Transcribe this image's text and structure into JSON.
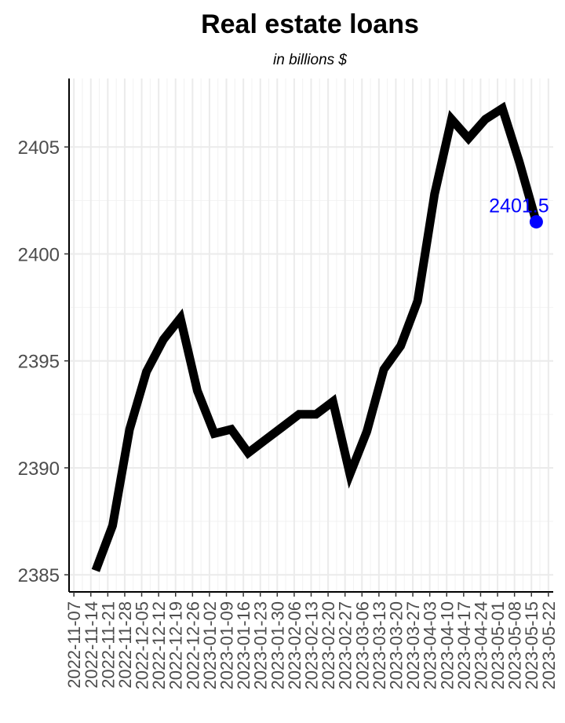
{
  "chart_data": {
    "type": "line",
    "title": "Real estate loans",
    "subtitle": "in billions $",
    "xlabel": "",
    "ylabel": "",
    "x_ticks": [
      "2022-11-07",
      "2022-11-14",
      "2022-11-21",
      "2022-11-28",
      "2022-12-05",
      "2022-12-12",
      "2022-12-19",
      "2022-12-26",
      "2023-01-02",
      "2023-01-09",
      "2023-01-16",
      "2023-01-23",
      "2023-01-30",
      "2023-02-06",
      "2023-02-13",
      "2023-02-20",
      "2023-02-27",
      "2023-03-06",
      "2023-03-13",
      "2023-03-20",
      "2023-03-27",
      "2023-04-03",
      "2023-04-10",
      "2023-04-17",
      "2023-04-24",
      "2023-05-01",
      "2023-05-08",
      "2023-05-15",
      "2023-05-22"
    ],
    "x": [
      "2022-11-16",
      "2022-11-23",
      "2022-11-30",
      "2022-12-07",
      "2022-12-14",
      "2022-12-21",
      "2022-12-28",
      "2023-01-04",
      "2023-01-11",
      "2023-01-18",
      "2023-01-25",
      "2023-02-01",
      "2023-02-08",
      "2023-02-15",
      "2023-02-22",
      "2023-03-01",
      "2023-03-08",
      "2023-03-15",
      "2023-03-22",
      "2023-03-29",
      "2023-04-05",
      "2023-04-12",
      "2023-04-19",
      "2023-04-26",
      "2023-05-03",
      "2023-05-10",
      "2023-05-17"
    ],
    "y": [
      2385.2,
      2387.3,
      2391.8,
      2394.5,
      2396.0,
      2397.0,
      2393.6,
      2391.6,
      2391.8,
      2390.7,
      2391.3,
      2391.9,
      2392.5,
      2392.5,
      2393.1,
      2389.7,
      2391.7,
      2394.6,
      2395.7,
      2397.8,
      2402.8,
      2406.3,
      2405.4,
      2406.3,
      2406.8,
      2404.3,
      2401.5
    ],
    "y_ticks": [
      2385,
      2390,
      2395,
      2400,
      2405
    ],
    "ylim": [
      2384.2,
      2408.2
    ],
    "xlim": [
      "2022-11-05",
      "2023-05-24"
    ],
    "last_point_label": "2401.5",
    "line_color": "#000000",
    "highlight_color": "#0000ff",
    "grid": true
  }
}
